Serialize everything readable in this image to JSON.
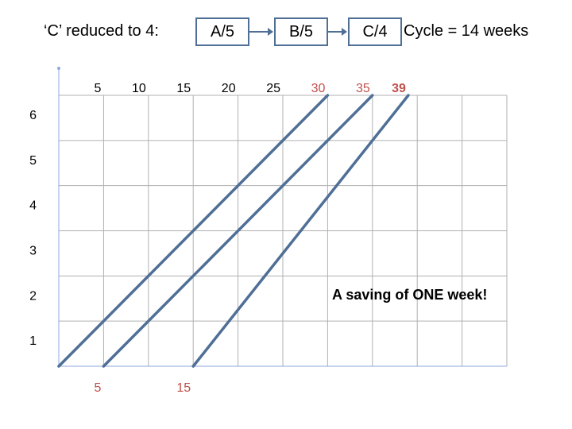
{
  "title": "‘C’ reduced to 4:",
  "activities": [
    {
      "label": "A/5"
    },
    {
      "label": "B/5"
    },
    {
      "label": "C/4"
    }
  ],
  "cycle_text": "Cycle = 14 weeks",
  "note": "A saving of ONE week!",
  "colors": {
    "line": "#4f6f96",
    "grid": "#b0b0b0",
    "highlight": "#c0504d",
    "text": "#000000"
  },
  "chart_data": {
    "type": "line",
    "top_ticks": [
      "5",
      "10",
      "15",
      "20",
      "25",
      "30",
      "35",
      "39"
    ],
    "top_tick_values": [
      5,
      10,
      15,
      20,
      25,
      30,
      35,
      39
    ],
    "top_tick_colors": [
      "#000000",
      "#000000",
      "#000000",
      "#000000",
      "#000000",
      "#c0504d",
      "#c0504d",
      "#c0504d"
    ],
    "y_ticks": [
      "1",
      "2",
      "3",
      "4",
      "5",
      "6"
    ],
    "y_tick_values": [
      1,
      2,
      3,
      4,
      5,
      6
    ],
    "bottom_ticks": [
      "5",
      "15"
    ],
    "bottom_tick_values": [
      5,
      15
    ],
    "xlim": [
      0,
      50
    ],
    "ylim": [
      0,
      6
    ],
    "grid": true,
    "series": [
      {
        "x": [
          0,
          30
        ],
        "y": [
          0,
          6
        ]
      },
      {
        "x": [
          5,
          35
        ],
        "y": [
          0,
          6
        ]
      },
      {
        "x": [
          15,
          39
        ],
        "y": [
          0,
          6
        ]
      }
    ]
  }
}
